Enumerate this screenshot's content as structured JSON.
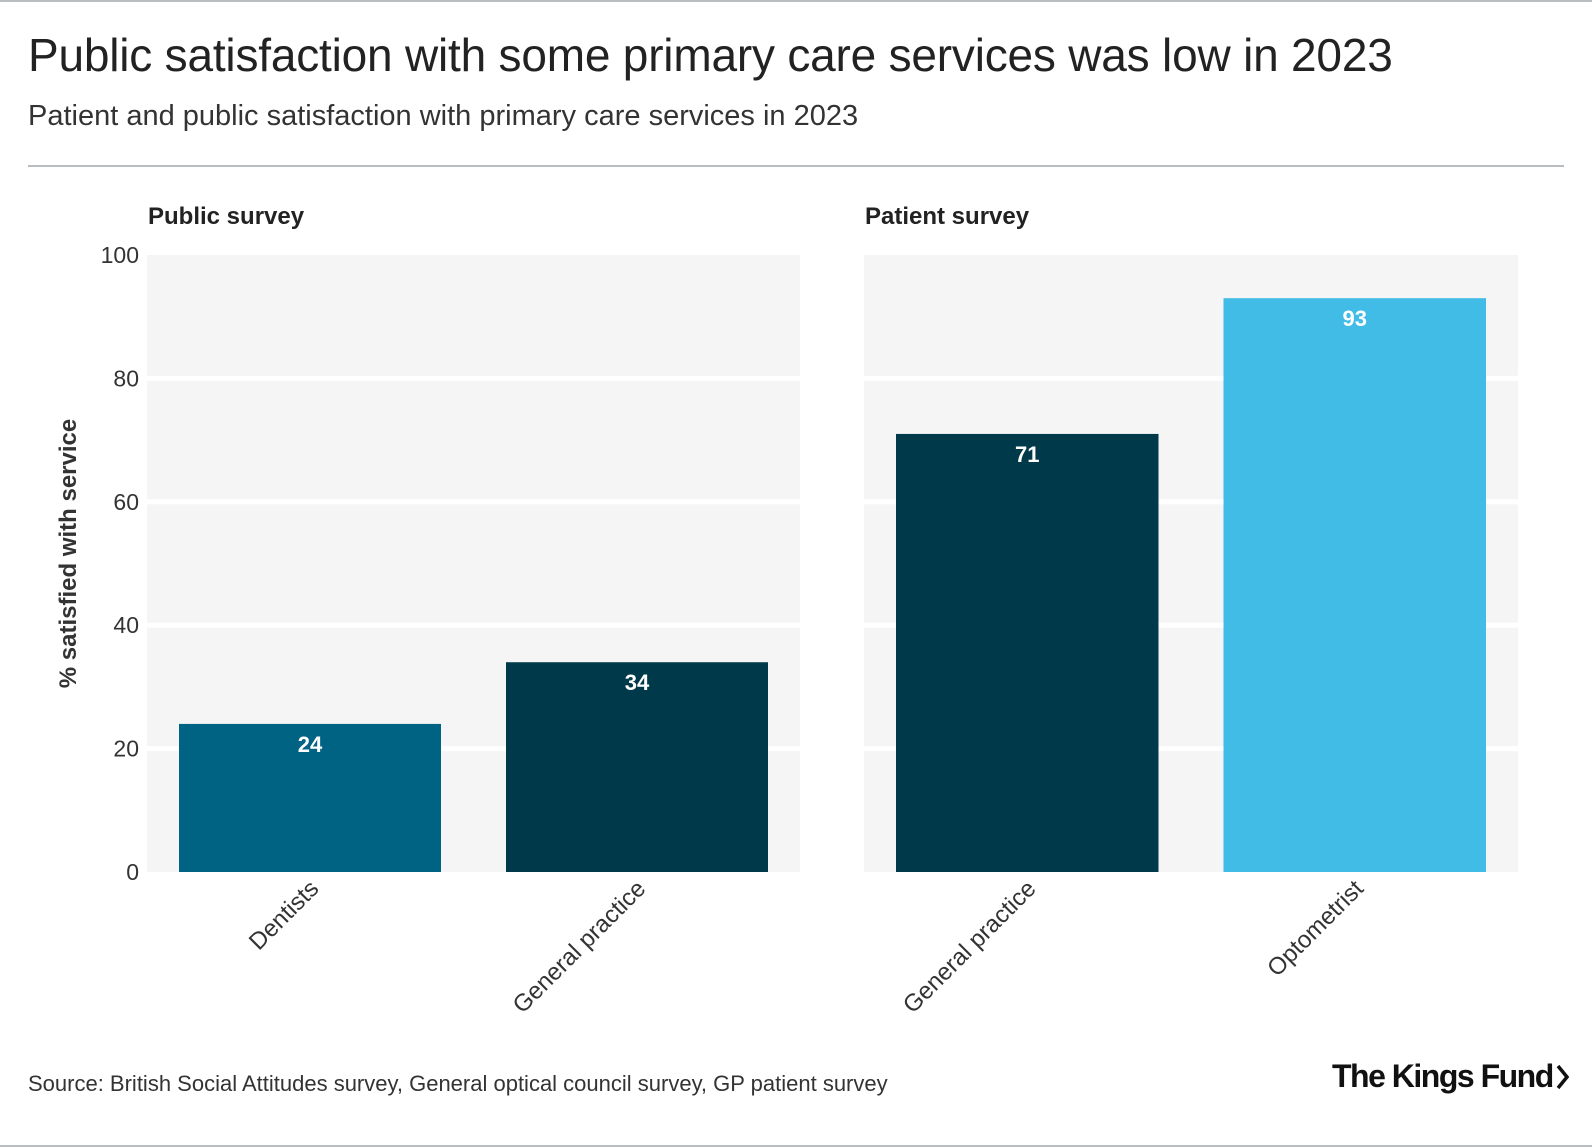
{
  "title": "Public satisfaction with some primary care services was low in 2023",
  "subtitle": "Patient and public satisfaction with primary care services in 2023",
  "source": "Source: British Social Attitudes survey, General optical council survey, GP patient survey",
  "logo_text": "The Kings Fund",
  "chart_data": {
    "type": "bar",
    "ylabel": "% satisfied with service",
    "ylim": [
      0,
      100
    ],
    "yticks": [
      0,
      20,
      40,
      60,
      80,
      100
    ],
    "grid": true,
    "panels": [
      {
        "title": "Public survey",
        "categories": [
          "Dentists",
          "General practice"
        ],
        "values": [
          24,
          34
        ],
        "colors": [
          "#006384",
          "#003a4a"
        ]
      },
      {
        "title": "Patient survey",
        "categories": [
          "General practice",
          "Optometrist"
        ],
        "values": [
          71,
          93
        ],
        "colors": [
          "#003a4a",
          "#41bce6"
        ]
      }
    ]
  }
}
